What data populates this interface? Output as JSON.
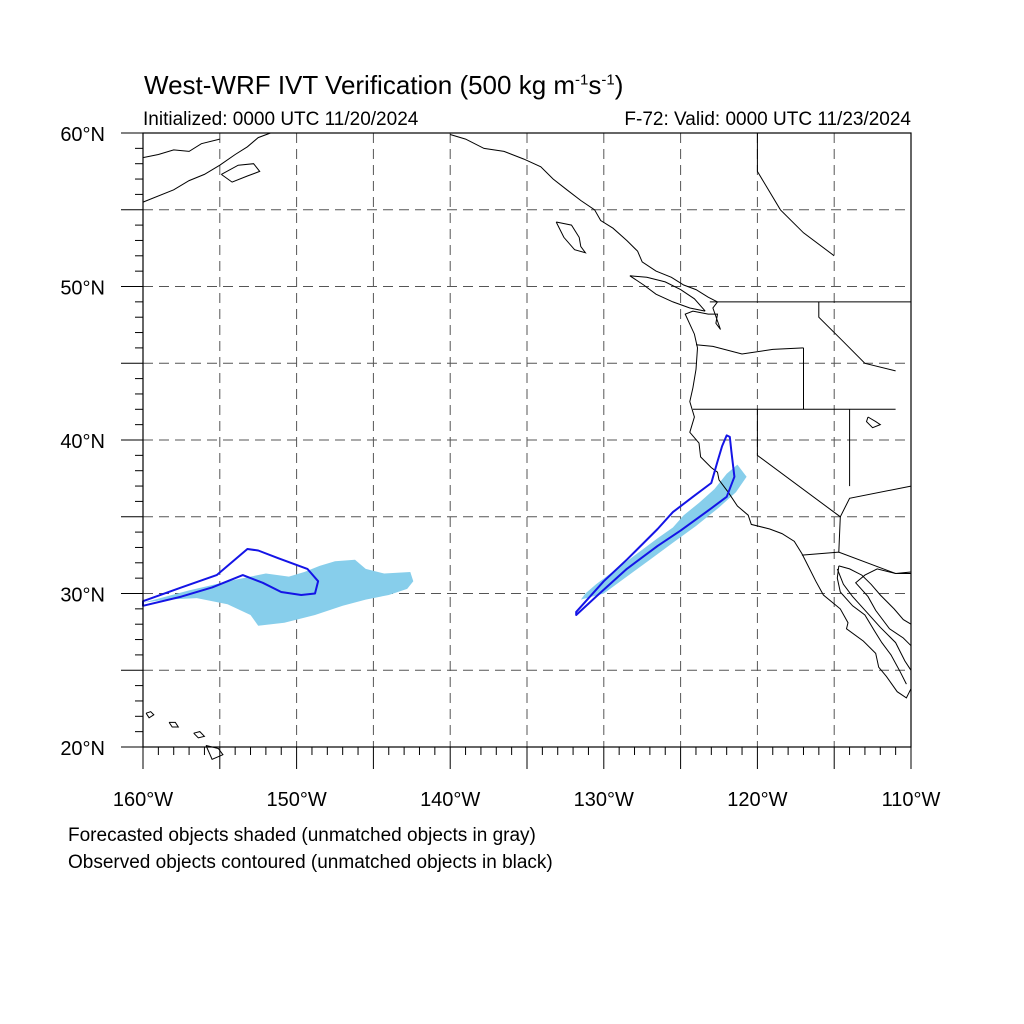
{
  "header": {
    "title_main": "West-WRF IVT Verification (500 kg m",
    "title_sup1": "-1",
    "title_mid": "s",
    "title_sup2": "-1",
    "title_end": ")",
    "initialized": "Initialized: 0000 UTC 11/20/2024",
    "valid": "F-72: Valid: 0000 UTC 11/23/2024"
  },
  "map": {
    "projection": "cylindrical-equidistant",
    "lon_range": [
      -160,
      -110
    ],
    "lat_range": [
      20,
      60
    ],
    "grid": "dashed, every 5 degrees",
    "lat_labels": [
      "20°N",
      "30°N",
      "40°N",
      "50°N",
      "60°N"
    ],
    "lon_labels": [
      "160°W",
      "150°W",
      "140°W",
      "130°W",
      "120°W",
      "110°W"
    ],
    "colors": {
      "forecast_fill": "#87ceeb",
      "observed_contour": "#1414e6",
      "coastline": "#000000",
      "grid": "#555555"
    },
    "forecast_objects": [
      {
        "name": "forecast-object-west",
        "outline": [
          [
            -160,
            29.4
          ],
          [
            -157,
            30.2
          ],
          [
            -154,
            30.9
          ],
          [
            -152,
            31.3
          ],
          [
            -150.5,
            31.1
          ],
          [
            -149.5,
            31.4
          ],
          [
            -148.5,
            31.8
          ],
          [
            -147.5,
            32.1
          ],
          [
            -146.2,
            32.2
          ],
          [
            -145.5,
            31.6
          ],
          [
            -144.3,
            31.3
          ],
          [
            -142.6,
            31.4
          ],
          [
            -142.4,
            30.8
          ],
          [
            -142.8,
            30.3
          ],
          [
            -144,
            29.9
          ],
          [
            -145.5,
            29.6
          ],
          [
            -147,
            29.2
          ],
          [
            -148.8,
            28.6
          ],
          [
            -150.8,
            28.1
          ],
          [
            -152.5,
            27.9
          ],
          [
            -153,
            28.6
          ],
          [
            -154.5,
            29.3
          ],
          [
            -156.5,
            29.7
          ],
          [
            -158.5,
            29.6
          ]
        ]
      },
      {
        "name": "forecast-object-east",
        "outline": [
          [
            -130.5,
            30.6
          ],
          [
            -128.5,
            32.1
          ],
          [
            -126.5,
            33.6
          ],
          [
            -125.5,
            34.3
          ],
          [
            -124.8,
            35.1
          ],
          [
            -123.8,
            35.9
          ],
          [
            -122.8,
            36.8
          ],
          [
            -122,
            37.8
          ],
          [
            -121.3,
            38.4
          ],
          [
            -120.7,
            37.6
          ],
          [
            -121.4,
            36.6
          ],
          [
            -122.5,
            35.6
          ],
          [
            -124,
            34.4
          ],
          [
            -125.5,
            33.3
          ],
          [
            -127,
            32.2
          ],
          [
            -128.5,
            31.1
          ],
          [
            -130,
            30.0
          ],
          [
            -131.5,
            29.6
          ],
          [
            -131.2,
            30.0
          ]
        ]
      }
    ],
    "observed_objects": [
      {
        "name": "observed-object-west",
        "outline": [
          [
            -160,
            29.5
          ],
          [
            -157.5,
            30.4
          ],
          [
            -155.2,
            31.2
          ],
          [
            -153.2,
            32.9
          ],
          [
            -152.5,
            32.8
          ],
          [
            -151.2,
            32.3
          ],
          [
            -149.3,
            31.6
          ],
          [
            -148.6,
            30.8
          ],
          [
            -148.8,
            30.0
          ],
          [
            -149.7,
            29.9
          ],
          [
            -151,
            30.1
          ],
          [
            -152.2,
            30.7
          ],
          [
            -153.5,
            31.2
          ],
          [
            -155.5,
            30.4
          ],
          [
            -157.5,
            29.8
          ],
          [
            -160,
            29.2
          ]
        ]
      },
      {
        "name": "observed-object-east",
        "outline": [
          [
            -131.8,
            28.8
          ],
          [
            -130,
            30.8
          ],
          [
            -128.5,
            32.2
          ],
          [
            -126.5,
            34.2
          ],
          [
            -125.5,
            35.3
          ],
          [
            -124.2,
            36.3
          ],
          [
            -123,
            37.2
          ],
          [
            -122.6,
            38.6
          ],
          [
            -122.3,
            39.6
          ],
          [
            -122,
            40.3
          ],
          [
            -121.8,
            40.2
          ],
          [
            -121.7,
            39.3
          ],
          [
            -121.5,
            37.6
          ],
          [
            -122,
            36.3
          ],
          [
            -123.2,
            35.4
          ],
          [
            -125,
            34.1
          ],
          [
            -126.5,
            33.1
          ],
          [
            -128.5,
            31.6
          ],
          [
            -130.5,
            29.8
          ],
          [
            -131.8,
            28.6
          ]
        ]
      }
    ]
  },
  "footer": {
    "line1": "Forecasted objects shaded (unmatched objects in gray)",
    "line2": "Observed objects contoured (unmatched objects in black)"
  }
}
